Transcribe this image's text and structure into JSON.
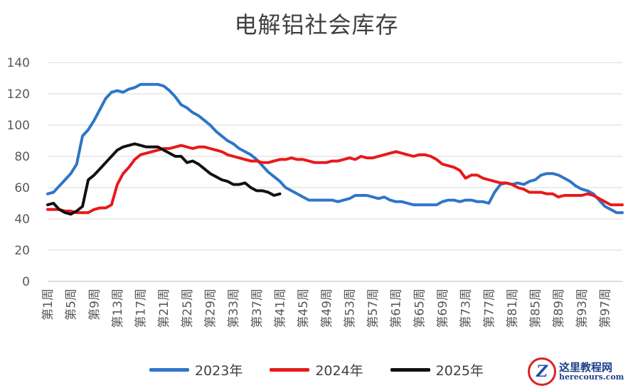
{
  "chart_data": {
    "type": "line",
    "title": "电解铝社会库存",
    "xlabel": "",
    "ylabel": "",
    "ylim": [
      0,
      140
    ],
    "yticks": [
      0,
      20,
      40,
      60,
      80,
      100,
      120,
      140
    ],
    "week_count": 100,
    "tick_labels": [
      "第1周",
      "第5周",
      "第9周",
      "第13周",
      "第17周",
      "第21周",
      "第25周",
      "第29周",
      "第33周",
      "第37周",
      "第41周",
      "第45周",
      "第49周",
      "第53周",
      "第57周",
      "第61周",
      "第65周",
      "第69周",
      "第73周",
      "第77周",
      "第81周",
      "第85周",
      "第89周",
      "第93周",
      "第97周"
    ],
    "tick_weeks": [
      1,
      5,
      9,
      13,
      17,
      21,
      25,
      29,
      33,
      37,
      41,
      45,
      49,
      53,
      57,
      61,
      65,
      69,
      73,
      77,
      81,
      85,
      89,
      93,
      97
    ],
    "legend_position": "bottom",
    "series": [
      {
        "name": "2023年",
        "color": "#2E75C8",
        "x": [
          1,
          2,
          3,
          4,
          5,
          6,
          7,
          8,
          9,
          10,
          11,
          12,
          13,
          14,
          15,
          16,
          17,
          18,
          19,
          20,
          21,
          22,
          23,
          24,
          25,
          26,
          27,
          28,
          29,
          30,
          31,
          32,
          33,
          34,
          35,
          36,
          37,
          38,
          39,
          40,
          41,
          42,
          43,
          44,
          45,
          46,
          47,
          48,
          49,
          50,
          51,
          52,
          53,
          54,
          55,
          56,
          57,
          58,
          59,
          60,
          61,
          62,
          63,
          64,
          65,
          66,
          67,
          68,
          69,
          70,
          71,
          72,
          73,
          74,
          75,
          76,
          77,
          78,
          79,
          80,
          81,
          82,
          83,
          84,
          85,
          86,
          87,
          88,
          89,
          90,
          91,
          92,
          93,
          94,
          95,
          96,
          97,
          98,
          99,
          100
        ],
        "values": [
          56,
          57,
          61,
          65,
          69,
          75,
          93,
          97,
          103,
          110,
          117,
          121,
          122,
          121,
          123,
          124,
          126,
          126,
          126,
          126,
          125,
          122,
          118,
          113,
          111,
          108,
          106,
          103,
          100,
          96,
          93,
          90,
          88,
          85,
          83,
          81,
          78,
          74,
          70,
          67,
          64,
          60,
          58,
          56,
          54,
          52,
          52,
          52,
          52,
          52,
          51,
          52,
          53,
          55,
          55,
          55,
          54,
          53,
          54,
          52,
          51,
          51,
          50,
          49,
          49,
          49,
          49,
          49,
          51,
          52,
          52,
          51,
          52,
          52,
          51,
          51,
          50,
          57,
          62,
          63,
          62,
          63,
          62,
          64,
          65,
          68,
          69,
          69,
          68,
          66,
          64,
          61,
          59,
          58,
          56,
          52,
          48,
          46,
          44,
          44
        ]
      },
      {
        "name": "2024年",
        "color": "#E8191B",
        "x": [
          1,
          2,
          3,
          4,
          5,
          6,
          7,
          8,
          9,
          10,
          11,
          12,
          13,
          14,
          15,
          16,
          17,
          18,
          19,
          20,
          21,
          22,
          23,
          24,
          25,
          26,
          27,
          28,
          29,
          30,
          31,
          32,
          33,
          34,
          35,
          36,
          37,
          38,
          39,
          40,
          41,
          42,
          43,
          44,
          45,
          46,
          47,
          48,
          49,
          50,
          51,
          52,
          53,
          54,
          55,
          56,
          57,
          58,
          59,
          60,
          61,
          62,
          63,
          64,
          65,
          66,
          67,
          68,
          69,
          70,
          71,
          72,
          73,
          74,
          75,
          76,
          77,
          78,
          79,
          80,
          81,
          82,
          83,
          84,
          85,
          86,
          87,
          88,
          89,
          90,
          91,
          92,
          93,
          94,
          95,
          96,
          97,
          98,
          99,
          100
        ],
        "values": [
          46,
          46,
          46,
          45,
          45,
          44,
          44,
          44,
          46,
          47,
          47,
          49,
          62,
          69,
          73,
          78,
          81,
          82,
          83,
          84,
          85,
          85,
          86,
          87,
          86,
          85,
          86,
          86,
          85,
          84,
          83,
          81,
          80,
          79,
          78,
          77,
          77,
          76,
          76,
          77,
          78,
          78,
          79,
          78,
          78,
          77,
          76,
          76,
          76,
          77,
          77,
          78,
          79,
          78,
          80,
          79,
          79,
          80,
          81,
          82,
          83,
          82,
          81,
          80,
          81,
          81,
          80,
          78,
          75,
          74,
          73,
          71,
          66,
          68,
          68,
          66,
          65,
          64,
          63,
          63,
          62,
          60,
          59,
          57,
          57,
          57,
          56,
          56,
          54,
          55,
          55,
          55,
          55,
          56,
          55,
          53,
          51,
          49,
          49,
          49
        ]
      },
      {
        "name": "2025年",
        "color": "#111111",
        "x": [
          1,
          2,
          3,
          4,
          5,
          6,
          7,
          8,
          9,
          10,
          11,
          12,
          13,
          14,
          15,
          16,
          17,
          18,
          19,
          20,
          21,
          22,
          23,
          24,
          25,
          26,
          27,
          28,
          29,
          30,
          31,
          32,
          33,
          34,
          35,
          36,
          37,
          38,
          39,
          40,
          41
        ],
        "values": [
          49,
          50,
          46,
          44,
          43,
          45,
          48,
          65,
          68,
          72,
          76,
          80,
          84,
          86,
          87,
          88,
          87,
          86,
          86,
          86,
          84,
          82,
          80,
          80,
          76,
          77,
          75,
          72,
          69,
          67,
          65,
          64,
          62,
          62,
          63,
          60,
          58,
          58,
          57,
          55,
          56
        ]
      }
    ]
  },
  "watermark": {
    "badge_letter": "Z",
    "cn": "这里教程网",
    "en": "herecours.com"
  }
}
